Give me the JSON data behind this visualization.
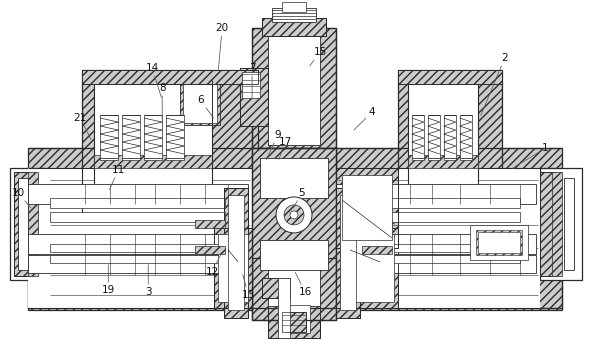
{
  "bg": "#ffffff",
  "lc": "#2a2a2a",
  "hc": "#cccccc",
  "lw": 0.7,
  "fs": 7.5,
  "hatch": "////",
  "annotations": [
    [
      1,
      546,
      148,
      510,
      170
    ],
    [
      2,
      505,
      58,
      480,
      118
    ],
    [
      3,
      148,
      292,
      148,
      262
    ],
    [
      4,
      372,
      112,
      352,
      132
    ],
    [
      5,
      302,
      193,
      292,
      210
    ],
    [
      6,
      200,
      100,
      215,
      120
    ],
    [
      7,
      252,
      68,
      252,
      102
    ],
    [
      8,
      162,
      88,
      162,
      122
    ],
    [
      9,
      278,
      135,
      265,
      162
    ],
    [
      10,
      18,
      193,
      32,
      210
    ],
    [
      11,
      118,
      170,
      108,
      192
    ],
    [
      12,
      212,
      272,
      222,
      252
    ],
    [
      13,
      248,
      295,
      242,
      272
    ],
    [
      14,
      152,
      68,
      162,
      100
    ],
    [
      15,
      320,
      52,
      308,
      68
    ],
    [
      16,
      305,
      292,
      294,
      270
    ],
    [
      17,
      285,
      142,
      278,
      162
    ],
    [
      19,
      108,
      290,
      108,
      262
    ],
    [
      20,
      222,
      28,
      218,
      72
    ],
    [
      21,
      80,
      118,
      92,
      142
    ]
  ]
}
